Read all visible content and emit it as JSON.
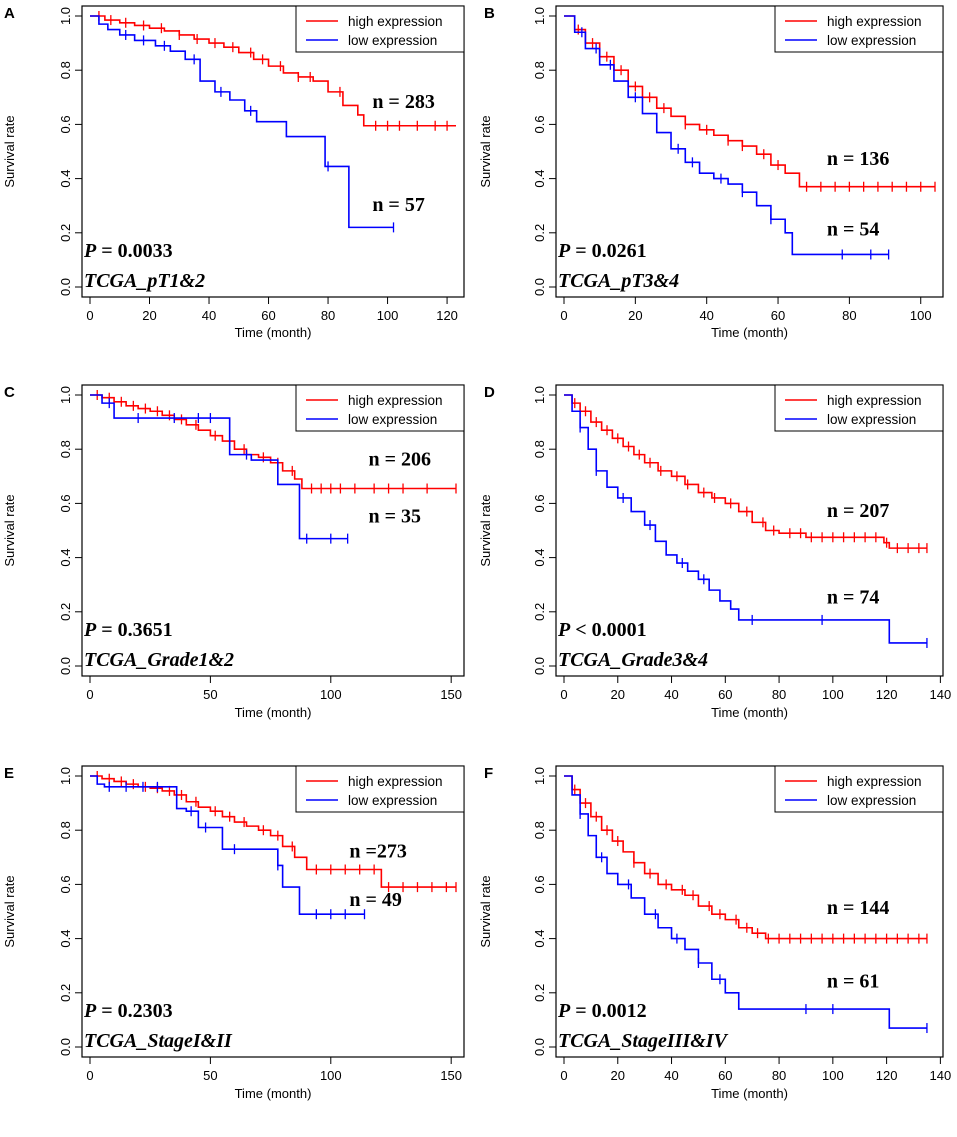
{
  "chart_data": [
    {
      "type": "line",
      "panel": "A",
      "xlabel": "Time (month)",
      "ylabel": "Survival rate",
      "xlim": [
        0,
        123
      ],
      "ylim": [
        0,
        1
      ],
      "xticks": [
        0,
        20,
        40,
        60,
        80,
        100,
        120
      ],
      "yticks": [
        0.0,
        0.2,
        0.4,
        0.6,
        0.8,
        1.0
      ],
      "legend": [
        "high expression",
        "low expression"
      ],
      "p_value": "P = 0.0033",
      "cohort": "TCGA_pT1&2",
      "series": [
        {
          "name": "high expression",
          "color": "#ff0000",
          "n_label": "n = 283",
          "x": [
            0,
            5,
            10,
            15,
            20,
            25,
            30,
            35,
            40,
            45,
            50,
            55,
            60,
            65,
            70,
            75,
            80,
            85,
            90,
            92,
            123
          ],
          "y": [
            1.0,
            0.985,
            0.975,
            0.965,
            0.955,
            0.945,
            0.93,
            0.915,
            0.9,
            0.885,
            0.865,
            0.84,
            0.815,
            0.79,
            0.775,
            0.76,
            0.72,
            0.67,
            0.635,
            0.595,
            0.595
          ],
          "censor_x": [
            3,
            7,
            12,
            18,
            24,
            30,
            36,
            42,
            48,
            54,
            58,
            64,
            70,
            74,
            84,
            96,
            100,
            104,
            110,
            116,
            120
          ]
        },
        {
          "name": "low expression",
          "color": "#0000ff",
          "n_label": "n = 57",
          "x": [
            0,
            3,
            6,
            10,
            15,
            22,
            27,
            32,
            37,
            42,
            47,
            52,
            56,
            66,
            79,
            87,
            102
          ],
          "y": [
            1.0,
            0.97,
            0.95,
            0.93,
            0.91,
            0.89,
            0.87,
            0.84,
            0.76,
            0.72,
            0.69,
            0.65,
            0.61,
            0.555,
            0.445,
            0.22,
            0.22
          ],
          "censor_x": [
            12,
            18,
            25,
            35,
            44,
            54,
            80,
            102
          ]
        }
      ],
      "x_text_labels": {
        "high": 90,
        "low": 90
      },
      "n_label_y": {
        "high": 0.66,
        "low": 0.28
      }
    },
    {
      "type": "line",
      "panel": "B",
      "xlabel": "Time (month)",
      "ylabel": "Survival rate",
      "xlim": [
        0,
        104
      ],
      "ylim": [
        0,
        1
      ],
      "xticks": [
        0,
        20,
        40,
        60,
        80,
        100
      ],
      "yticks": [
        0.0,
        0.2,
        0.4,
        0.6,
        0.8,
        1.0
      ],
      "legend": [
        "high expression",
        "low expression"
      ],
      "p_value": "P = 0.0261",
      "cohort": "TCGA_pT3&4",
      "series": [
        {
          "name": "high expression",
          "color": "#ff0000",
          "n_label": "n = 136",
          "x": [
            0,
            3,
            6,
            10,
            14,
            18,
            22,
            26,
            30,
            34,
            38,
            42,
            46,
            50,
            54,
            58,
            62,
            66,
            104
          ],
          "y": [
            1.0,
            0.95,
            0.9,
            0.85,
            0.8,
            0.74,
            0.7,
            0.66,
            0.63,
            0.6,
            0.58,
            0.56,
            0.54,
            0.52,
            0.49,
            0.45,
            0.42,
            0.37,
            0.37
          ],
          "censor_x": [
            4,
            8,
            12,
            16,
            20,
            24,
            28,
            34,
            40,
            46,
            50,
            56,
            60,
            68,
            72,
            76,
            80,
            84,
            88,
            92,
            96,
            100,
            104
          ]
        },
        {
          "name": "low expression",
          "color": "#0000ff",
          "n_label": "n = 54",
          "x": [
            0,
            3,
            6,
            10,
            14,
            18,
            22,
            26,
            30,
            34,
            38,
            42,
            46,
            50,
            54,
            58,
            62,
            64,
            91
          ],
          "y": [
            1.0,
            0.94,
            0.88,
            0.82,
            0.76,
            0.7,
            0.64,
            0.57,
            0.51,
            0.46,
            0.42,
            0.4,
            0.38,
            0.35,
            0.3,
            0.25,
            0.2,
            0.12,
            0.12
          ],
          "censor_x": [
            5,
            9,
            13,
            20,
            32,
            36,
            44,
            50,
            58,
            78,
            86,
            91
          ]
        }
      ],
      "n_label_y": {
        "high": 0.45,
        "low": 0.19
      }
    },
    {
      "type": "line",
      "panel": "C",
      "xlabel": "Time (month)",
      "ylabel": "Survival rate",
      "xlim": [
        0,
        152
      ],
      "ylim": [
        0,
        1
      ],
      "xticks": [
        0,
        50,
        100,
        150
      ],
      "yticks": [
        0.0,
        0.2,
        0.4,
        0.6,
        0.8,
        1.0
      ],
      "legend": [
        "high expression",
        "low expression"
      ],
      "p_value": "P = 0.3651",
      "cohort": "TCGA_Grade1&2",
      "series": [
        {
          "name": "high expression",
          "color": "#ff0000",
          "n_label": "n = 206",
          "x": [
            0,
            5,
            10,
            15,
            20,
            25,
            30,
            35,
            40,
            45,
            50,
            55,
            60,
            65,
            70,
            75,
            80,
            85,
            88,
            152
          ],
          "y": [
            1.0,
            0.99,
            0.975,
            0.96,
            0.95,
            0.94,
            0.925,
            0.91,
            0.89,
            0.87,
            0.85,
            0.83,
            0.8,
            0.78,
            0.77,
            0.75,
            0.72,
            0.69,
            0.655,
            0.655
          ],
          "censor_x": [
            3,
            8,
            13,
            18,
            23,
            28,
            33,
            38,
            44,
            52,
            58,
            64,
            72,
            78,
            84,
            92,
            96,
            100,
            104,
            110,
            118,
            124,
            130,
            140,
            152
          ]
        },
        {
          "name": "low expression",
          "color": "#0000ff",
          "n_label": "n = 35",
          "x": [
            0,
            5,
            10,
            55,
            58,
            67,
            78,
            87,
            107
          ],
          "y": [
            1.0,
            0.97,
            0.915,
            0.915,
            0.78,
            0.76,
            0.67,
            0.47,
            0.47
          ],
          "censor_x": [
            8,
            20,
            35,
            45,
            50,
            65,
            90,
            100,
            107
          ]
        }
      ],
      "n_label_y": {
        "high": 0.74,
        "low": 0.53
      }
    },
    {
      "type": "line",
      "panel": "D",
      "xlabel": "Time (month)",
      "ylabel": "Survival rate",
      "xlim": [
        0,
        138
      ],
      "ylim": [
        0,
        1
      ],
      "xticks": [
        0,
        20,
        40,
        60,
        80,
        100,
        120,
        140
      ],
      "yticks": [
        0.0,
        0.2,
        0.4,
        0.6,
        0.8,
        1.0
      ],
      "legend": [
        "high expression",
        "low expression"
      ],
      "p_value": "P < 0.0001",
      "cohort": "TCGA_Grade3&4",
      "series": [
        {
          "name": "high expression",
          "color": "#ff0000",
          "n_label": "n = 207",
          "x": [
            0,
            3,
            6,
            10,
            14,
            18,
            22,
            26,
            30,
            35,
            40,
            45,
            50,
            55,
            60,
            65,
            70,
            75,
            80,
            90,
            110,
            119,
            121,
            135
          ],
          "y": [
            1.0,
            0.97,
            0.94,
            0.9,
            0.87,
            0.84,
            0.81,
            0.78,
            0.75,
            0.72,
            0.7,
            0.67,
            0.64,
            0.62,
            0.6,
            0.57,
            0.53,
            0.5,
            0.49,
            0.475,
            0.475,
            0.455,
            0.435,
            0.435
          ],
          "censor_x": [
            4,
            8,
            12,
            16,
            20,
            24,
            28,
            32,
            36,
            42,
            46,
            52,
            56,
            62,
            68,
            74,
            78,
            84,
            88,
            92,
            96,
            100,
            104,
            108,
            112,
            116,
            120,
            124,
            128,
            132,
            135
          ]
        },
        {
          "name": "low expression",
          "color": "#0000ff",
          "n_label": "n = 74",
          "x": [
            0,
            3,
            6,
            9,
            12,
            16,
            20,
            25,
            30,
            34,
            38,
            42,
            46,
            50,
            54,
            58,
            62,
            65,
            119,
            121,
            135
          ],
          "y": [
            1.0,
            0.94,
            0.88,
            0.8,
            0.72,
            0.66,
            0.62,
            0.57,
            0.52,
            0.46,
            0.41,
            0.38,
            0.35,
            0.32,
            0.28,
            0.24,
            0.21,
            0.17,
            0.17,
            0.085,
            0.085
          ],
          "censor_x": [
            6,
            12,
            22,
            32,
            44,
            52,
            70,
            96,
            135
          ]
        }
      ],
      "n_label_y": {
        "high": 0.55,
        "low": 0.23
      }
    },
    {
      "type": "line",
      "panel": "E",
      "xlabel": "Time (month)",
      "ylabel": "Survival rate",
      "xlim": [
        0,
        152
      ],
      "ylim": [
        0,
        1
      ],
      "xticks": [
        0,
        50,
        100,
        150
      ],
      "yticks": [
        0.0,
        0.2,
        0.4,
        0.6,
        0.8,
        1.0
      ],
      "legend": [
        "high expression",
        "low expression"
      ],
      "p_value": "P = 0.2303",
      "cohort": "TCGA_StageI&II",
      "series": [
        {
          "name": "high expression",
          "color": "#ff0000",
          "n_label": "n =273",
          "x": [
            0,
            5,
            10,
            15,
            20,
            25,
            30,
            35,
            40,
            45,
            50,
            55,
            60,
            65,
            70,
            75,
            80,
            85,
            90,
            120,
            121,
            152
          ],
          "y": [
            1.0,
            0.99,
            0.98,
            0.97,
            0.96,
            0.955,
            0.945,
            0.93,
            0.905,
            0.885,
            0.87,
            0.85,
            0.83,
            0.815,
            0.8,
            0.78,
            0.74,
            0.7,
            0.655,
            0.655,
            0.59,
            0.59
          ],
          "censor_x": [
            3,
            8,
            13,
            18,
            23,
            28,
            33,
            38,
            44,
            52,
            58,
            64,
            72,
            78,
            84,
            94,
            100,
            106,
            112,
            118,
            124,
            130,
            136,
            142,
            148,
            152
          ]
        },
        {
          "name": "low expression",
          "color": "#0000ff",
          "n_label": "n = 49",
          "x": [
            0,
            3,
            6,
            30,
            36,
            40,
            45,
            53,
            55,
            65,
            78,
            80,
            87,
            114
          ],
          "y": [
            1.0,
            0.97,
            0.96,
            0.96,
            0.88,
            0.87,
            0.81,
            0.81,
            0.73,
            0.73,
            0.67,
            0.59,
            0.49,
            0.49
          ],
          "censor_x": [
            8,
            15,
            22,
            28,
            42,
            48,
            60,
            78,
            94,
            100,
            106,
            114
          ]
        }
      ],
      "n_label_y": {
        "high": 0.7,
        "low": 0.52
      }
    },
    {
      "type": "line",
      "panel": "F",
      "xlabel": "Time (month)",
      "ylabel": "Survival rate",
      "xlim": [
        0,
        138
      ],
      "ylim": [
        0,
        1
      ],
      "xticks": [
        0,
        20,
        40,
        60,
        80,
        100,
        120,
        140
      ],
      "yticks": [
        0.0,
        0.2,
        0.4,
        0.6,
        0.8,
        1.0
      ],
      "legend": [
        "high expression",
        "low expression"
      ],
      "p_value": "P = 0.0012",
      "cohort": "TCGA_StageIII&IV",
      "series": [
        {
          "name": "high expression",
          "color": "#ff0000",
          "n_label": "n = 144",
          "x": [
            0,
            3,
            6,
            10,
            14,
            18,
            22,
            26,
            30,
            35,
            40,
            45,
            50,
            55,
            60,
            65,
            70,
            75,
            135
          ],
          "y": [
            1.0,
            0.95,
            0.9,
            0.85,
            0.8,
            0.76,
            0.72,
            0.68,
            0.64,
            0.6,
            0.58,
            0.56,
            0.52,
            0.49,
            0.47,
            0.44,
            0.42,
            0.4,
            0.4
          ],
          "censor_x": [
            4,
            8,
            12,
            16,
            20,
            26,
            32,
            38,
            44,
            48,
            54,
            58,
            64,
            68,
            72,
            76,
            80,
            84,
            88,
            92,
            96,
            100,
            104,
            108,
            112,
            116,
            120,
            124,
            128,
            132,
            135
          ]
        },
        {
          "name": "low expression",
          "color": "#0000ff",
          "n_label": "n = 61",
          "x": [
            0,
            3,
            6,
            9,
            12,
            16,
            20,
            25,
            30,
            35,
            40,
            45,
            50,
            55,
            60,
            65,
            119,
            121,
            135
          ],
          "y": [
            1.0,
            0.93,
            0.86,
            0.78,
            0.7,
            0.64,
            0.6,
            0.55,
            0.49,
            0.44,
            0.4,
            0.36,
            0.31,
            0.25,
            0.2,
            0.14,
            0.14,
            0.07,
            0.07
          ],
          "censor_x": [
            6,
            14,
            24,
            34,
            42,
            50,
            58,
            90,
            100,
            135
          ]
        }
      ],
      "n_label_y": {
        "high": 0.49,
        "low": 0.22
      }
    }
  ]
}
